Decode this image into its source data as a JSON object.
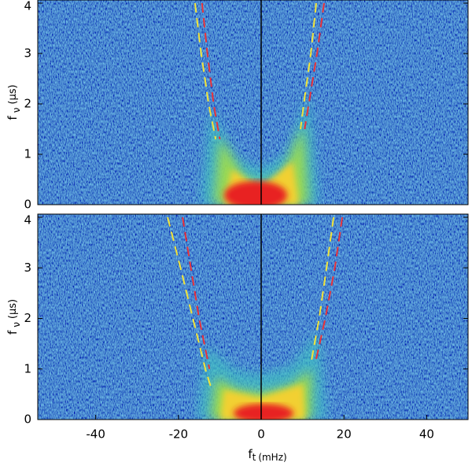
{
  "chart_data": [
    {
      "type": "line",
      "ylabel": "f",
      "ylabel_sub": "ν",
      "ylabel_unit": "(μs)",
      "xlim": [
        -54,
        50
      ],
      "ylim": [
        0,
        4
      ],
      "yticks": [
        0,
        1,
        2,
        3,
        4
      ],
      "series": [
        {
          "color": "#f2e43a",
          "x": [
            -16,
            -14.5,
            -12.7,
            -11
          ],
          "values": [
            4,
            3,
            2,
            1.3
          ]
        },
        {
          "color": "#e8323a",
          "x": [
            -14.3,
            -13,
            -11.5,
            -10
          ],
          "values": [
            4,
            3,
            2,
            1.3
          ]
        },
        {
          "color": "#f2e43a",
          "x": [
            13.3,
            12,
            10.3,
            9.5
          ],
          "values": [
            4,
            3,
            2,
            1.5
          ]
        },
        {
          "color": "#e8323a",
          "x": [
            15.2,
            13.5,
            11.5,
            10.5
          ],
          "values": [
            4,
            3,
            2,
            1.5
          ]
        }
      ]
    },
    {
      "type": "line",
      "ylabel": "f",
      "ylabel_sub": "ν",
      "ylabel_unit": "(μs)",
      "xlabel": "f",
      "xlabel_sub": "t",
      "xlabel_unit": "(mHz)",
      "xlim": [
        -54,
        50
      ],
      "xticks": [
        -40,
        -20,
        0,
        20,
        40
      ],
      "ylim": [
        0,
        4
      ],
      "yticks": [
        0,
        1,
        2,
        3,
        4
      ],
      "series": [
        {
          "color": "#f2e43a",
          "x": [
            -22.6,
            -19.5,
            -16.5,
            -13.5,
            -12
          ],
          "values": [
            4,
            3,
            2,
            1,
            0.6
          ]
        },
        {
          "color": "#e8323a",
          "x": [
            -19,
            -17,
            -15,
            -12.5
          ],
          "values": [
            4,
            3,
            2,
            1
          ]
        },
        {
          "color": "#f2e43a",
          "x": [
            17.5,
            15.8,
            14,
            12
          ],
          "values": [
            4,
            3,
            2,
            1.1
          ]
        },
        {
          "color": "#e8323a",
          "x": [
            19.6,
            17.8,
            15.5,
            13.3
          ],
          "values": [
            4,
            3,
            2,
            1.2
          ]
        }
      ]
    }
  ]
}
